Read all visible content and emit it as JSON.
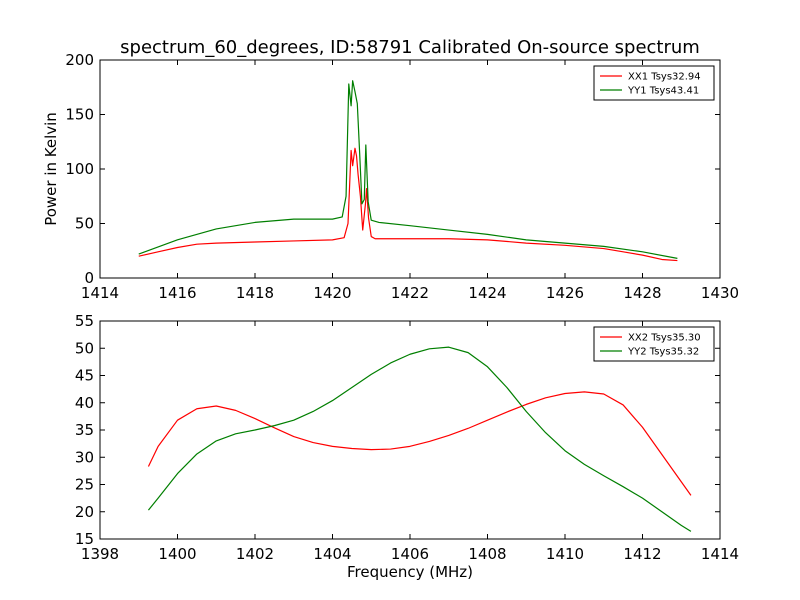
{
  "title": "spectrum_60_degrees, ID:58791 Calibrated On-source spectrum",
  "chart_data": [
    {
      "type": "line",
      "ylabel": "Power in Kelvin",
      "xlabel": "",
      "xlim": [
        1414,
        1430
      ],
      "ylim": [
        0,
        200
      ],
      "xticks": [
        "1414",
        "1416",
        "1418",
        "1420",
        "1422",
        "1424",
        "1426",
        "1428",
        "1430"
      ],
      "yticks": [
        "0",
        "50",
        "100",
        "150",
        "200"
      ],
      "legend_position": "top-right",
      "series": [
        {
          "name": "XX1 Tsys32.94",
          "color": "#ff0000",
          "x": [
            1415.0,
            1415.5,
            1416.0,
            1416.5,
            1417.0,
            1418.0,
            1419.0,
            1420.0,
            1420.3,
            1420.4,
            1420.48,
            1420.52,
            1420.58,
            1420.62,
            1420.66,
            1420.72,
            1420.78,
            1420.85,
            1420.88,
            1420.93,
            1421.0,
            1421.1,
            1422.0,
            1423.0,
            1424.0,
            1425.0,
            1426.0,
            1427.0,
            1427.5,
            1428.0,
            1428.5,
            1428.9
          ],
          "y": [
            20,
            24,
            28,
            31,
            32,
            33,
            34,
            35,
            37,
            50,
            117,
            103,
            119,
            112,
            95,
            75,
            44,
            68,
            82,
            55,
            38,
            36,
            36,
            36,
            35,
            32,
            30,
            27,
            24,
            21,
            17,
            16
          ]
        },
        {
          "name": "YY1 Tsys43.41",
          "color": "#007f00",
          "x": [
            1415.0,
            1416.0,
            1417.0,
            1418.0,
            1419.0,
            1420.0,
            1420.25,
            1420.35,
            1420.42,
            1420.48,
            1420.52,
            1420.58,
            1420.64,
            1420.7,
            1420.76,
            1420.82,
            1420.86,
            1420.92,
            1421.0,
            1421.2,
            1422.0,
            1423.0,
            1424.0,
            1425.0,
            1426.0,
            1427.0,
            1428.0,
            1428.9
          ],
          "y": [
            22,
            35,
            45,
            51,
            54,
            54,
            56,
            75,
            178,
            158,
            181,
            171,
            160,
            115,
            68,
            72,
            122,
            70,
            53,
            51,
            48,
            44,
            40,
            35,
            32,
            29,
            24,
            18
          ]
        }
      ]
    },
    {
      "type": "line",
      "xlabel": "Frequency (MHz)",
      "ylabel": "",
      "xlim": [
        1398,
        1414
      ],
      "ylim": [
        15,
        55
      ],
      "xticks": [
        "1398",
        "1400",
        "1402",
        "1404",
        "1406",
        "1408",
        "1410",
        "1412",
        "1414"
      ],
      "yticks": [
        "15",
        "20",
        "25",
        "30",
        "35",
        "40",
        "45",
        "50",
        "55"
      ],
      "legend_position": "top-right",
      "series": [
        {
          "name": "XX2 Tsys35.30",
          "color": "#ff0000",
          "x": [
            1399.25,
            1399.5,
            1400.0,
            1400.5,
            1401.0,
            1401.5,
            1402.0,
            1402.5,
            1403.0,
            1403.5,
            1404.0,
            1404.5,
            1405.0,
            1405.5,
            1406.0,
            1406.5,
            1407.0,
            1407.5,
            1408.0,
            1408.5,
            1409.0,
            1409.5,
            1410.0,
            1410.5,
            1411.0,
            1411.5,
            1412.0,
            1412.5,
            1413.0,
            1413.25
          ],
          "y": [
            28.3,
            32,
            36.8,
            38.9,
            39.4,
            38.6,
            37.1,
            35.4,
            33.8,
            32.7,
            32.0,
            31.6,
            31.4,
            31.5,
            32.0,
            32.9,
            34.0,
            35.3,
            36.8,
            38.3,
            39.7,
            40.9,
            41.7,
            42.0,
            41.6,
            39.6,
            35.5,
            30.5,
            25.5,
            23.0
          ]
        },
        {
          "name": "YY2 Tsys35.32",
          "color": "#007f00",
          "x": [
            1399.25,
            1399.5,
            1400.0,
            1400.5,
            1401.0,
            1401.5,
            1402.0,
            1402.5,
            1403.0,
            1403.5,
            1404.0,
            1404.5,
            1405.0,
            1405.5,
            1406.0,
            1406.5,
            1407.0,
            1407.5,
            1408.0,
            1408.5,
            1409.0,
            1409.5,
            1410.0,
            1410.5,
            1411.0,
            1411.5,
            1412.0,
            1412.5,
            1413.0,
            1413.25
          ],
          "y": [
            20.3,
            22.5,
            27,
            30.6,
            33.0,
            34.3,
            35.0,
            35.8,
            36.8,
            38.4,
            40.4,
            42.8,
            45.2,
            47.3,
            48.9,
            49.9,
            50.2,
            49.2,
            46.6,
            42.8,
            38.4,
            34.5,
            31.2,
            28.7,
            26.6,
            24.6,
            22.5,
            20.0,
            17.5,
            16.4
          ]
        }
      ]
    }
  ]
}
